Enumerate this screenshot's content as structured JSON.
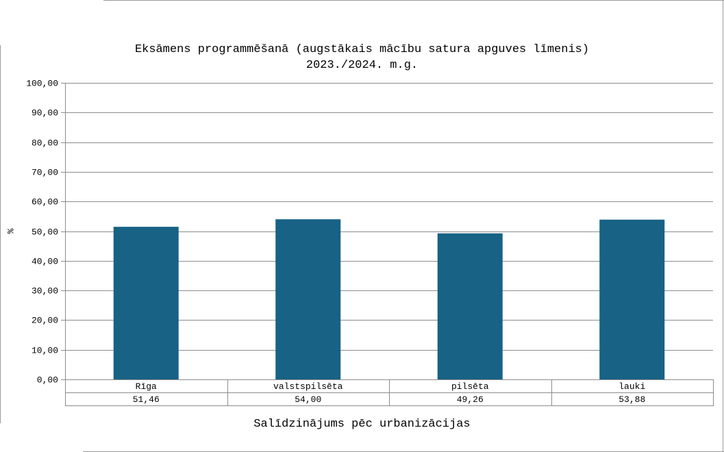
{
  "chart_data": {
    "type": "bar",
    "title": "Eksāmens programmēšanā (augstākais mācību satura apguves līmenis)",
    "subtitle": "2023./2024. m.g.",
    "xlabel": "Salīdzinājums pēc urbanizācijas",
    "ylabel": "%",
    "categories": [
      "Rīga",
      "valstspilsēta",
      "pilsēta",
      "lauki"
    ],
    "values": [
      51.46,
      54.0,
      49.26,
      53.88
    ],
    "value_labels": [
      "51,46",
      "54,00",
      "49,26",
      "53,88"
    ],
    "ylim": [
      0,
      100
    ],
    "yticks": [
      "0,00",
      "10,00",
      "20,00",
      "30,00",
      "40,00",
      "50,00",
      "60,00",
      "70,00",
      "80,00",
      "90,00",
      "100,00"
    ],
    "grid": true,
    "bar_color": "#176285",
    "data_table": true
  }
}
